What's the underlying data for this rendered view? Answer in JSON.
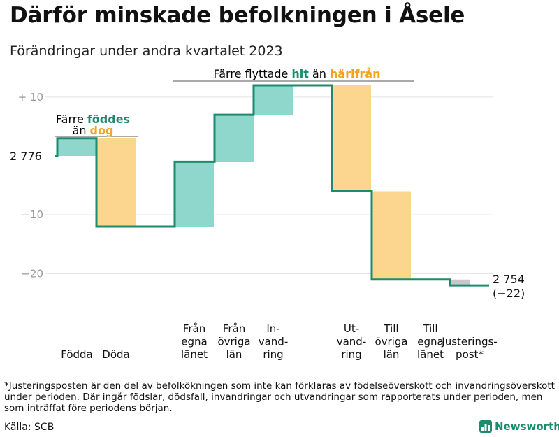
{
  "title": "Därför minskade befolkningen i Åsele",
  "subtitle": "Förändringar under andra kvartalet 2023",
  "footnote": "*Justeringsposten är den del av befolkökningen som inte kan förklaras av födelseöverskott och invandringsöverskott under perioden. Där ingår födslar, dödsfall, invandringar och utvandringar som rapporterats under perioden, men som inträffat före periodens början.",
  "source": "Källa: SCB",
  "brand": "Newsworthy",
  "colors": {
    "increase": "#8fd6cc",
    "decrease": "#fcd68e",
    "adjustment": "#c8c8c8",
    "line": "#1e8a6e",
    "accent_green": "#1e8a6e",
    "accent_orange": "#f4a321"
  },
  "annotations": {
    "births_deaths": {
      "line1": "Färre",
      "line1_highlight": "föddes",
      "line2": "än",
      "line2_highlight": "dog"
    },
    "migration": {
      "text": "Färre flyttade",
      "highlight1": "hit",
      "mid": "än",
      "highlight2": "härifrån"
    }
  },
  "chart_data": {
    "type": "waterfall",
    "title": "Därför minskade befolkningen i Åsele",
    "subtitle": "Förändringar under andra kvartalet 2023",
    "start": {
      "label": "2 776",
      "value": 2776
    },
    "end": {
      "label": "2 754",
      "sublabel": "(−22)",
      "value": 2754,
      "change": -22
    },
    "y_axis": {
      "ticks": [
        10,
        -10,
        -20
      ],
      "tick_labels": [
        "+  10",
        "−10",
        "−20"
      ],
      "ylim": [
        -24,
        12
      ],
      "baseline": 0
    },
    "steps": [
      {
        "label": "Födda",
        "value": 3,
        "kind": "increase"
      },
      {
        "label": "Döda",
        "value": -15,
        "kind": "decrease"
      },
      {
        "label": "Från\negna\nlänet",
        "value": 11,
        "kind": "increase"
      },
      {
        "label": "Från\növriga\nlän",
        "value": 8,
        "kind": "increase"
      },
      {
        "label": "In-\nvand-\nring",
        "value": 5,
        "kind": "increase"
      },
      {
        "label": "Ut-\nvand-\nring",
        "value": -18,
        "kind": "decrease"
      },
      {
        "label": "Till\növriga\nlän",
        "value": -15,
        "kind": "decrease"
      },
      {
        "label": "Till\negna\nlänet",
        "value": 0,
        "kind": "decrease"
      },
      {
        "label": "Justerings-\npost*",
        "value": -1,
        "kind": "adjustment"
      }
    ]
  }
}
